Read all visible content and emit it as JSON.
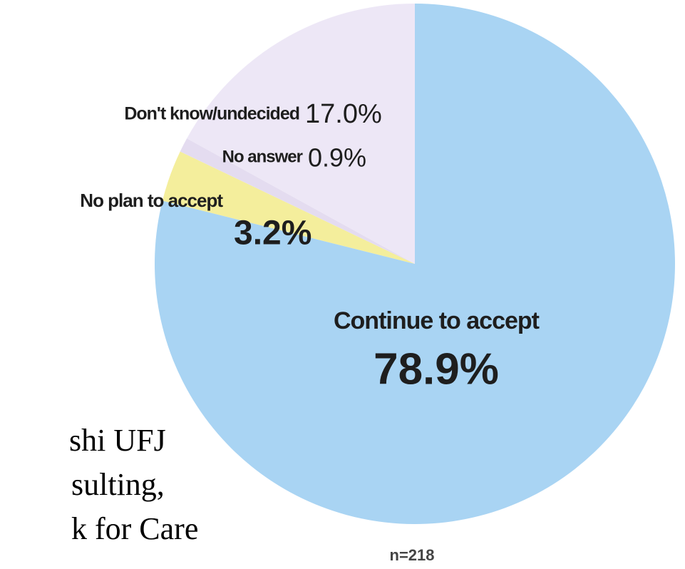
{
  "chart_data": {
    "type": "pie",
    "categories": [
      "Continue to accept",
      "No plan to accept",
      "No answer",
      "Don't know/undecided"
    ],
    "values": [
      78.9,
      3.2,
      0.9,
      17.0
    ],
    "value_labels": [
      "78.9%",
      "3.2%",
      "0.9%",
      "17.0%"
    ],
    "colors": [
      "#a9d4f3",
      "#f4ee9c",
      "#e4dcf0",
      "#ede7f6"
    ],
    "note": "n=218",
    "source_lines": [
      "shi UFJ",
      "sulting,",
      "k for Care"
    ]
  }
}
